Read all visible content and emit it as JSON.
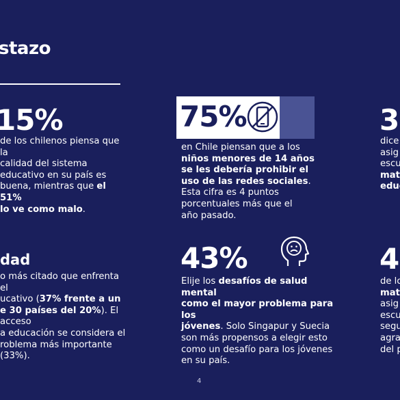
{
  "header": {
    "title": "stazo"
  },
  "stats": {
    "s1": {
      "value": "15%",
      "lines": [
        "de los chilenos piensa que la",
        "calidad del sistema",
        "educativo en su país es",
        "buena, mientras que ",
        "el 51%",
        "lo ve como malo",
        "."
      ]
    },
    "s2": {
      "value": "75%",
      "lines": [
        "en Chile piensan que a los",
        "niños menores de 14 años",
        "se les debería prohibir el",
        "uso de las redes sociales",
        ".",
        "Esta cifra es 4 puntos",
        "porcentuales más que el",
        "año pasado."
      ]
    },
    "s3": {
      "value": "3(",
      "lines": [
        "dice",
        "asig",
        "escu",
        "mate",
        "educ"
      ]
    },
    "s4": {
      "heading": "dad",
      "lines": [
        "o más citado que enfrenta el",
        "ucativo (",
        "37% frente a un",
        "e 30 países del 20%",
        "). El acceso",
        "a educación se considera el",
        "roblema más importante (33%)."
      ]
    },
    "s5": {
      "value": "43%",
      "lines": [
        "Elije los ",
        "desafíos de salud mental",
        "como el mayor problema para los",
        "jóvenes",
        ". Solo Singapur y Suecia",
        "son más propensos a elegir esto",
        "como un desafío para los jóvenes",
        "en su país."
      ]
    },
    "s6": {
      "value": "4(",
      "lines": [
        "de lo",
        "mate",
        "asig",
        "escu",
        "segu",
        "agra",
        "del p"
      ]
    }
  },
  "icons": {
    "phone": "no-phone-icon",
    "head": "sad-head-icon"
  },
  "page_number": "4",
  "colors": {
    "background": "#1a1f5c",
    "accent": "#4a5394",
    "text": "#ffffff"
  }
}
